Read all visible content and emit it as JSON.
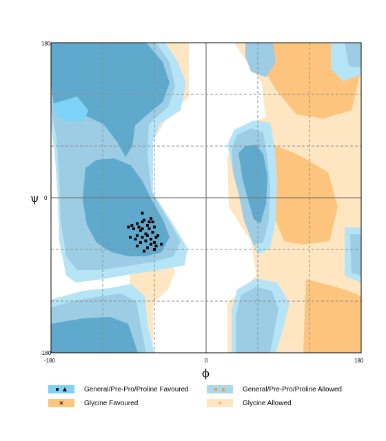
{
  "chart_data": {
    "type": "scatter",
    "title": "",
    "xlabel": "ϕ",
    "ylabel": "ψ",
    "xlim": [
      -180,
      180
    ],
    "ylim": [
      -180,
      180
    ],
    "x_ticks": [
      "-180",
      "0",
      "180"
    ],
    "y_ticks": [
      "180",
      "0",
      "-180"
    ],
    "grid": true,
    "legend_position": "bottom",
    "colors": {
      "general_favoured": "#5fa9cc",
      "general_allowed": "#a9d8ee",
      "glycine_favoured": "#fdc47d",
      "glycine_allowed": "#fde6c1",
      "general_allowed_bright": "#b6e4f7"
    },
    "series": [
      {
        "name": "General/Pre-Pro/Proline Favoured",
        "points": [
          [
            -74,
            -18
          ],
          [
            -80,
            -30
          ],
          [
            -72,
            -26
          ],
          [
            -68,
            -32
          ],
          [
            -76,
            -38
          ],
          [
            -70,
            -42
          ],
          [
            -66,
            -36
          ],
          [
            -62,
            -40
          ],
          [
            -74,
            -46
          ],
          [
            -80,
            -44
          ],
          [
            -84,
            -36
          ],
          [
            -78,
            -34
          ],
          [
            -64,
            -48
          ],
          [
            -70,
            -50
          ],
          [
            -60,
            -52
          ],
          [
            -56,
            -44
          ],
          [
            -64,
            -54
          ],
          [
            -58,
            -56
          ],
          [
            -52,
            -54
          ],
          [
            -86,
            -32
          ],
          [
            -90,
            -34
          ],
          [
            -82,
            -48
          ],
          [
            -76,
            -52
          ],
          [
            -68,
            -58
          ],
          [
            -60,
            -60
          ],
          [
            -72,
            -62
          ],
          [
            -64,
            -24
          ],
          [
            -60,
            -34
          ],
          [
            -88,
            -46
          ],
          [
            -74,
            -28
          ],
          [
            -68,
            -44
          ],
          [
            -66,
            -28
          ],
          [
            -74,
            -36
          ],
          [
            -58,
            -46
          ],
          [
            -62,
            -28
          ],
          [
            -80,
            -56
          ]
        ]
      }
    ]
  },
  "legend": {
    "items": [
      {
        "label": "General/Pre-Pro/Proline Favoured",
        "color": "#7dd3f7",
        "marker": "square+triangle"
      },
      {
        "label": "General/Pre-Pro/Proline Allowed",
        "color": "#a9d8ee",
        "marker": "square+triangle"
      },
      {
        "label": "Glycine Favoured",
        "color": "#fdc47d",
        "marker": "x"
      },
      {
        "label": "Glycine Allowed",
        "color": "#fde6c1",
        "marker": "x"
      }
    ]
  }
}
